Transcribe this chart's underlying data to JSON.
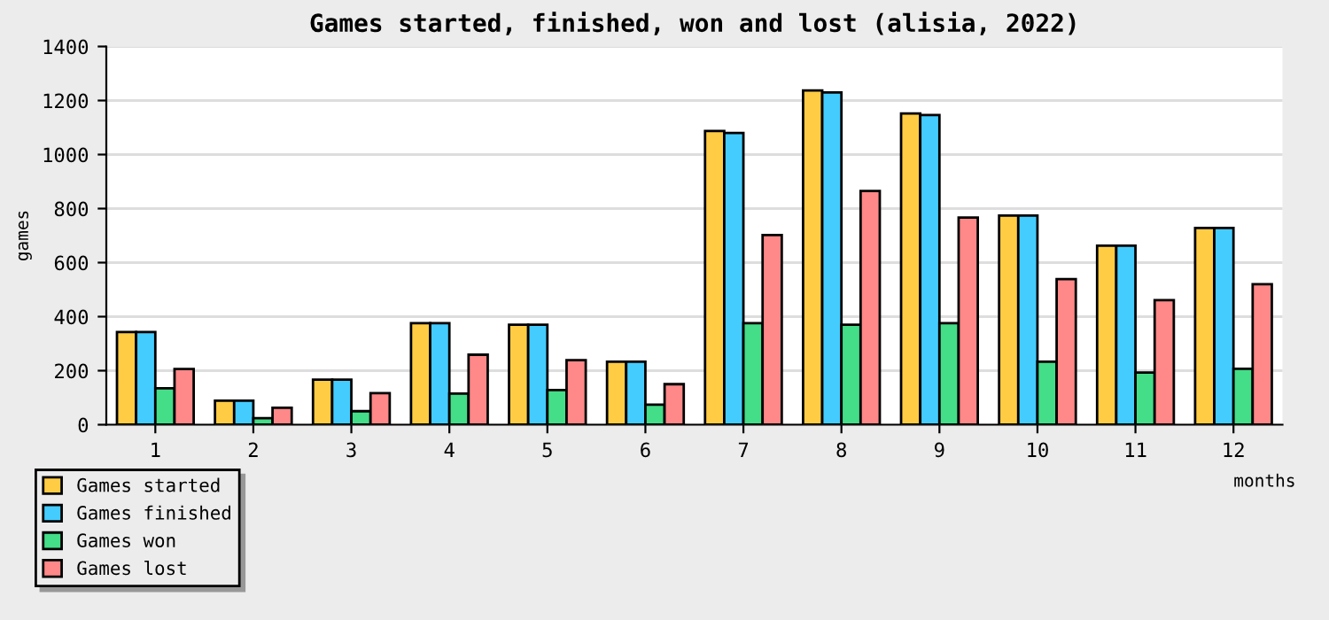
{
  "chart_data": {
    "type": "bar",
    "title": "Games started, finished, won and lost (alisia, 2022)",
    "xlabel": "months",
    "ylabel": "games",
    "categories": [
      "1",
      "2",
      "3",
      "4",
      "5",
      "6",
      "7",
      "8",
      "9",
      "10",
      "11",
      "12"
    ],
    "series": [
      {
        "name": "Games started",
        "color": "#ffcc44",
        "values": [
          343,
          89,
          167,
          376,
          370,
          233,
          1087,
          1237,
          1152,
          774,
          663,
          728
        ]
      },
      {
        "name": "Games finished",
        "color": "#44ccff",
        "values": [
          343,
          89,
          167,
          376,
          370,
          233,
          1080,
          1230,
          1146,
          774,
          663,
          728
        ]
      },
      {
        "name": "Games won",
        "color": "#44dd88",
        "values": [
          135,
          24,
          50,
          115,
          128,
          74,
          376,
          370,
          376,
          233,
          193,
          207
        ]
      },
      {
        "name": "Games lost",
        "color": "#ff8888",
        "values": [
          206,
          63,
          117,
          259,
          239,
          150,
          702,
          865,
          767,
          539,
          461,
          520
        ]
      }
    ],
    "ylim": [
      0,
      1400
    ],
    "yticks": [
      0,
      200,
      400,
      600,
      800,
      1000,
      1200,
      1400
    ],
    "grid": "y",
    "legend": "bottom left"
  }
}
